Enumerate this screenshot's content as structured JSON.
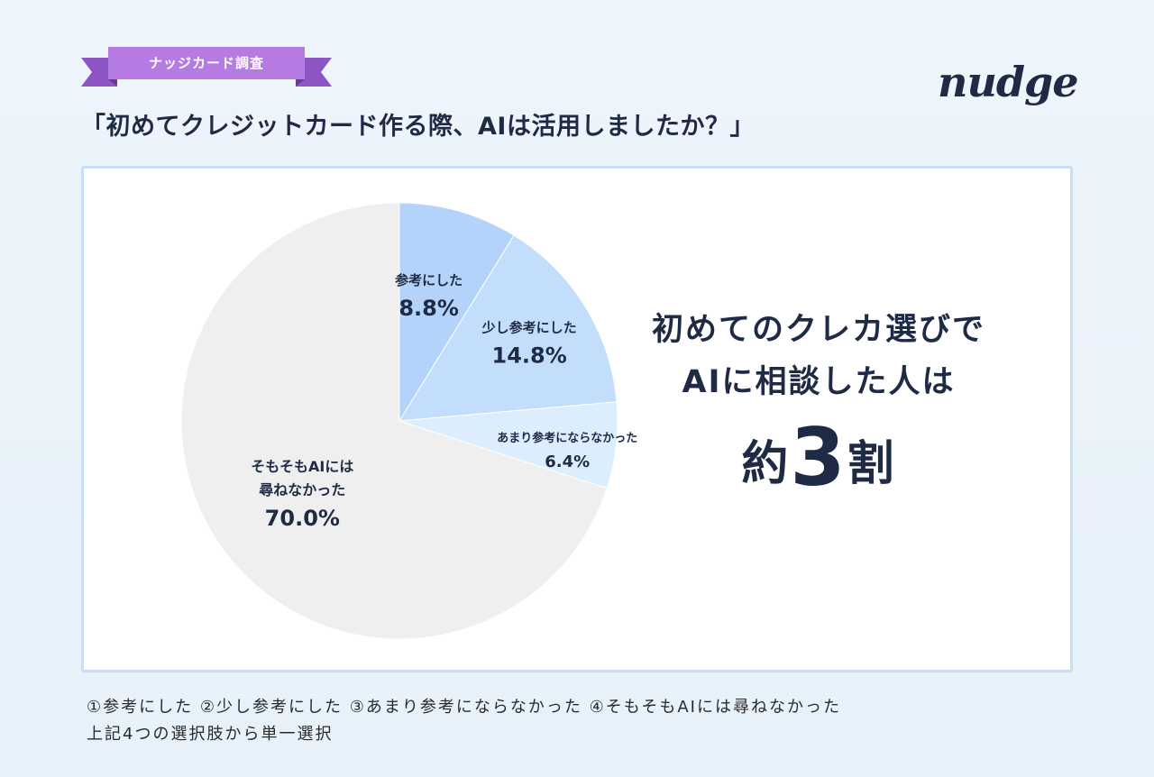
{
  "tag_label": "ナッジカード調査",
  "title": "「初めてクレジットカード作る際、AIは活用しましたか？」",
  "logo_text": "nudge",
  "headline": {
    "line1": "初めてのクレカ選びで",
    "line2": "AIに相談した人は",
    "big_prefix": "約",
    "big_number": "3",
    "big_suffix": "割"
  },
  "footer": {
    "line1": "①参考にした ②少し参考にした ③あまり参考にならなかった ④そもそもAIには尋ねなかった",
    "line2": "上記4つの選択肢から単一選択"
  },
  "colors": {
    "ribbon": "#b57be3",
    "ribbon_dark": "#8e55c4",
    "panel_border": "#c6def6",
    "text": "#1f2a44"
  },
  "chart_data": {
    "type": "pie",
    "start": "12 o'clock, clockwise",
    "slices": [
      {
        "label": "参考にした",
        "value": 8.8,
        "value_label": "8.8%",
        "color": "#b3d3fa"
      },
      {
        "label": "少し参考にした",
        "value": 14.8,
        "value_label": "14.8%",
        "color": "#c3defc"
      },
      {
        "label": "あまり参考にならなかった",
        "value": 6.4,
        "value_label": "6.4%",
        "color": "#dcedfd"
      },
      {
        "label": "そもそもAIには尋ねなかった",
        "label_lines": [
          "そもそもAIには",
          "尋ねなかった"
        ],
        "value": 70.0,
        "value_label": "70.0%",
        "color": "#efeff0"
      }
    ]
  }
}
